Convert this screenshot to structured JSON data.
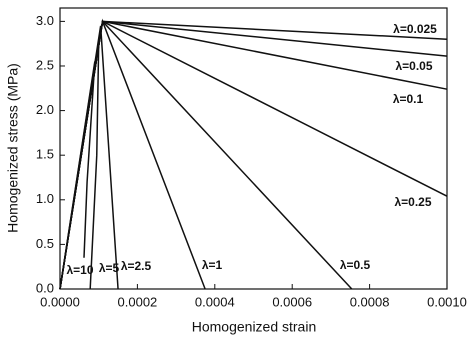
{
  "chart_data": {
    "type": "line",
    "x_label": "Homogenized strain",
    "y_label": "Homogenized stress (MPa)",
    "xlim": [
      0,
      0.001
    ],
    "ylim": [
      0,
      3.15
    ],
    "xticks": [
      {
        "value": 0,
        "label": "0.0000"
      },
      {
        "value": 0.0002,
        "label": "0.0002"
      },
      {
        "value": 0.0004,
        "label": "0.0004"
      },
      {
        "value": 0.0006,
        "label": "0.0006"
      },
      {
        "value": 0.0008,
        "label": "0.0008"
      },
      {
        "value": 0.001,
        "label": "0.0010"
      }
    ],
    "yticks": [
      {
        "value": 0,
        "label": "0.0"
      },
      {
        "value": 0.5,
        "label": "0.5"
      },
      {
        "value": 1,
        "label": "1.0"
      },
      {
        "value": 1.5,
        "label": "1.5"
      },
      {
        "value": 2,
        "label": "2.0"
      },
      {
        "value": 2.5,
        "label": "2.5"
      },
      {
        "value": 3,
        "label": "3.0"
      }
    ],
    "series": [
      {
        "name": "λ=0.025",
        "color": "#111111",
        "x": [
          0,
          0.00011,
          0.001
        ],
        "values": [
          0,
          3.0,
          2.8
        ]
      },
      {
        "name": "λ=0.05",
        "color": "#111111",
        "x": [
          0,
          0.00011,
          0.001
        ],
        "values": [
          0,
          3.0,
          2.61
        ]
      },
      {
        "name": "λ=0.1",
        "color": "#111111",
        "x": [
          0,
          0.00011,
          0.001
        ],
        "values": [
          0,
          3.0,
          2.24
        ]
      },
      {
        "name": "λ=0.25",
        "color": "#111111",
        "x": [
          0,
          0.00011,
          0.001
        ],
        "values": [
          0,
          3.0,
          1.04
        ]
      },
      {
        "name": "λ=0.5",
        "color": "#111111",
        "x": [
          0,
          0.00011,
          0.000754
        ],
        "values": [
          0,
          3.0,
          0
        ]
      },
      {
        "name": "λ=1",
        "color": "#111111",
        "x": [
          0,
          0.00011,
          0.000375
        ],
        "values": [
          0,
          3.0,
          0
        ]
      },
      {
        "name": "λ=2.5",
        "color": "#111111",
        "x": [
          0,
          0.000105,
          0.00015
        ],
        "values": [
          0,
          2.95,
          0
        ]
      },
      {
        "name": "λ=5",
        "color": "#111111",
        "x": [
          0,
          0.0001,
          9.5e-05,
          7.8e-05
        ],
        "values": [
          0,
          2.75,
          1.5,
          0
        ]
      },
      {
        "name": "λ=10",
        "color": "#111111",
        "x": [
          0,
          9e-05,
          7e-05,
          6.2e-05
        ],
        "values": [
          0,
          2.55,
          1.2,
          0.35
        ]
      }
    ]
  }
}
